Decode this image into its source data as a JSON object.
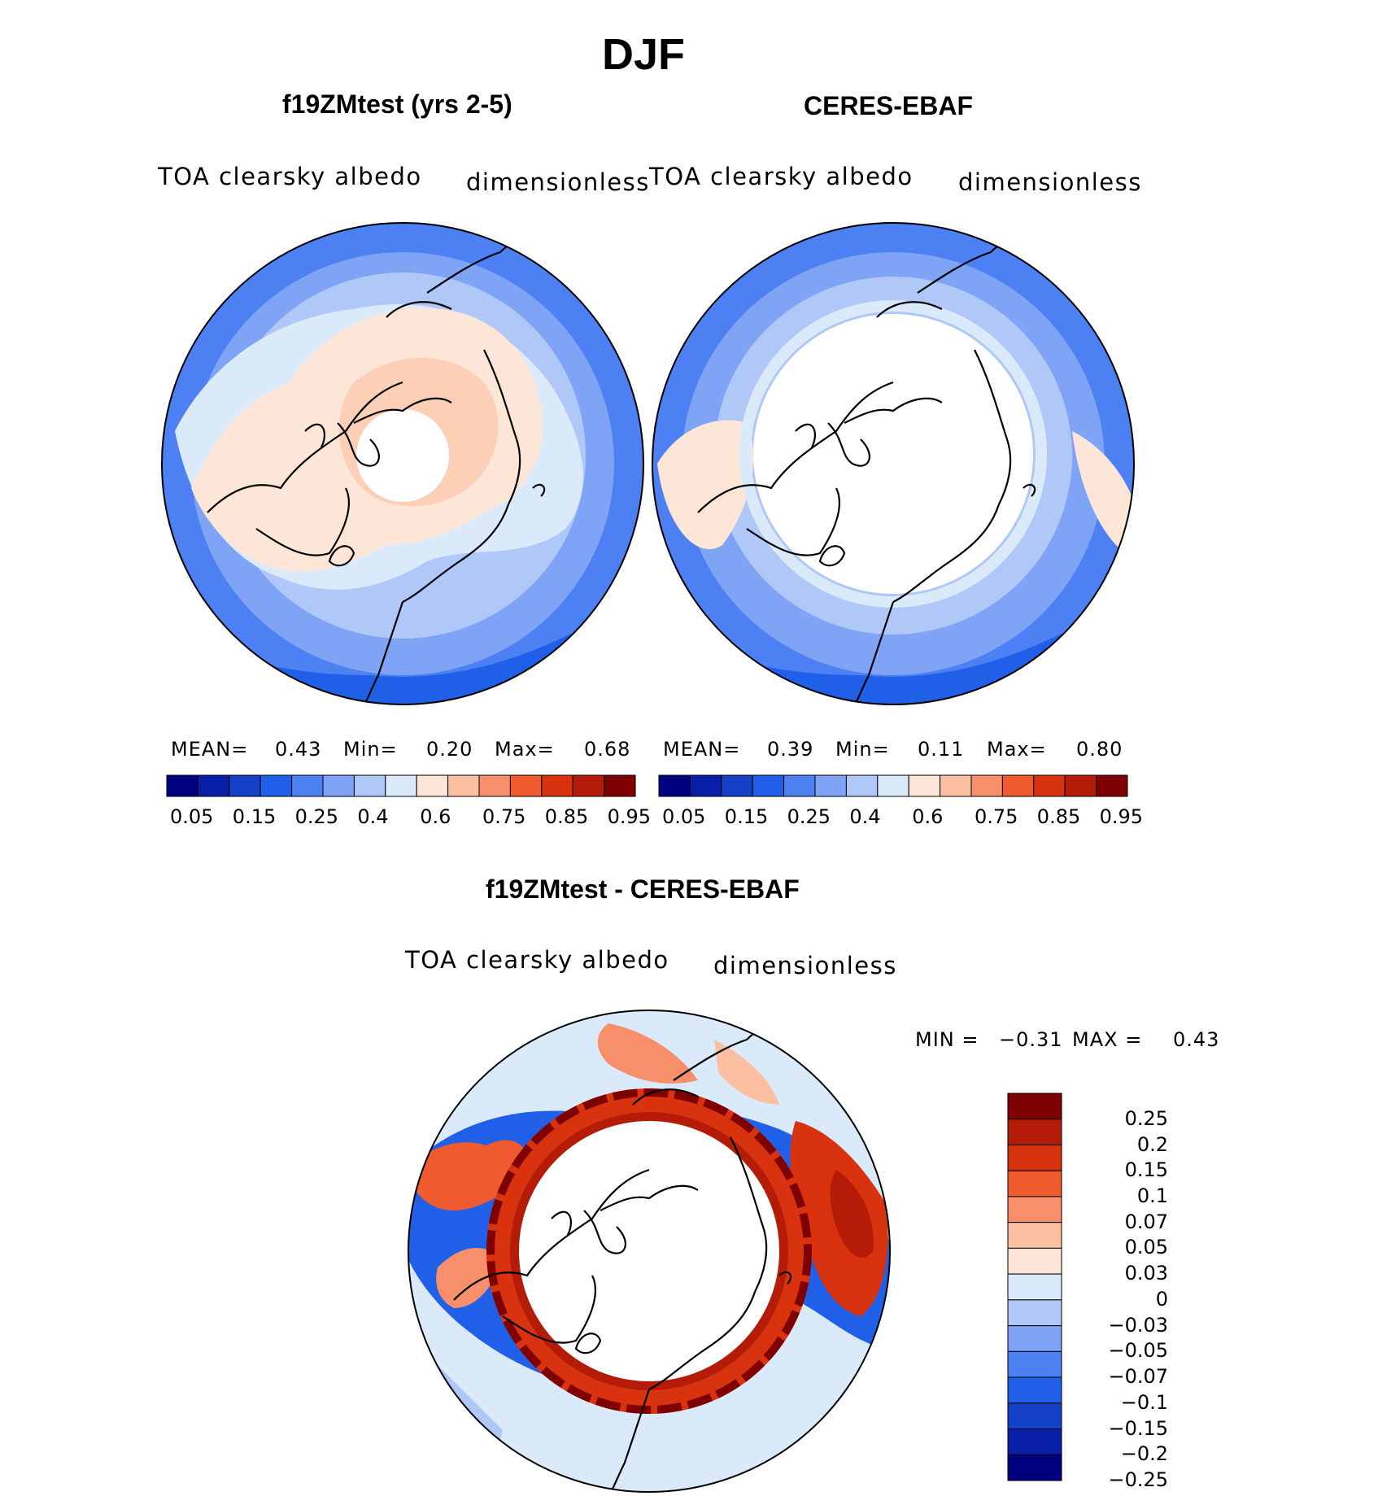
{
  "title": "DJF",
  "colors": {
    "scale14": [
      "#000080",
      "#0a1fa8",
      "#1540c8",
      "#2060e8",
      "#4d80f2",
      "#7fa3f5",
      "#b0c8f8",
      "#dbeafb",
      "#fde6d8",
      "#fbc0a0",
      "#f7906a",
      "#ef5a2e",
      "#d8320f",
      "#b41c08",
      "#7f0000"
    ],
    "diff14": [
      "#000080",
      "#0a1fa8",
      "#1540c8",
      "#2060e8",
      "#4d80f2",
      "#7fa3f5",
      "#b0c8f8",
      "#dbeafb",
      "#fde6d8",
      "#fbc0a0",
      "#f7906a",
      "#ef5a2e",
      "#d8320f",
      "#b41c08",
      "#7f0000"
    ],
    "land_line": "#000000"
  },
  "panels": [
    {
      "id": "model",
      "title": "f19ZMtest (yrs 2-5)",
      "variable": "TOA clearsky albedo",
      "units": "dimensionless",
      "stats": {
        "mean_label": "MEAN=",
        "mean": "0.43",
        "min_label": "Min=",
        "min": "0.20",
        "max_label": "Max=",
        "max": "0.68"
      }
    },
    {
      "id": "obs",
      "title": "CERES-EBAF",
      "variable": "TOA clearsky albedo",
      "units": "dimensionless",
      "stats": {
        "mean_label": "MEAN=",
        "mean": "0.39",
        "min_label": "Min=",
        "min": "0.11",
        "max_label": "Max=",
        "max": "0.80"
      }
    },
    {
      "id": "diff",
      "title": "f19ZMtest - CERES-EBAF",
      "variable": "TOA clearsky albedo",
      "units": "dimensionless",
      "stats": {
        "min_label": "MIN =",
        "min": "−0.31",
        "max_label": "MAX =",
        "max": "0.43"
      }
    }
  ],
  "chart_data": [
    {
      "type": "heatmap",
      "projection": "north polar stereographic",
      "title": "f19ZMtest (yrs 2-5)",
      "subtitle": "TOA clearsky albedo",
      "units": "dimensionless",
      "colorbar_ticks": [
        "0.05",
        "0.15",
        "0.25",
        "0.4",
        "0.6",
        "0.75",
        "0.85",
        "0.95"
      ],
      "contour_levels": [
        0.05,
        0.1,
        0.15,
        0.2,
        0.25,
        0.3,
        0.4,
        0.5,
        0.6,
        0.7,
        0.75,
        0.8,
        0.85,
        0.9,
        0.95
      ],
      "mean": 0.43,
      "min": 0.2,
      "max": 0.68
    },
    {
      "type": "heatmap",
      "projection": "north polar stereographic",
      "title": "CERES-EBAF",
      "subtitle": "TOA clearsky albedo",
      "units": "dimensionless",
      "colorbar_ticks": [
        "0.05",
        "0.15",
        "0.25",
        "0.4",
        "0.6",
        "0.75",
        "0.85",
        "0.95"
      ],
      "contour_levels": [
        0.05,
        0.1,
        0.15,
        0.2,
        0.25,
        0.3,
        0.4,
        0.5,
        0.6,
        0.7,
        0.75,
        0.8,
        0.85,
        0.9,
        0.95
      ],
      "mean": 0.39,
      "min": 0.11,
      "max": 0.8
    },
    {
      "type": "heatmap",
      "projection": "north polar stereographic",
      "title": "f19ZMtest - CERES-EBAF",
      "subtitle": "TOA clearsky albedo",
      "units": "dimensionless",
      "colorbar_ticks": [
        "0.25",
        "0.2",
        "0.15",
        "0.1",
        "0.07",
        "0.05",
        "0.03",
        "0",
        "−0.03",
        "−0.05",
        "−0.07",
        "−0.1",
        "−0.15",
        "−0.2",
        "−0.25"
      ],
      "min": -0.31,
      "max": 0.43
    }
  ]
}
